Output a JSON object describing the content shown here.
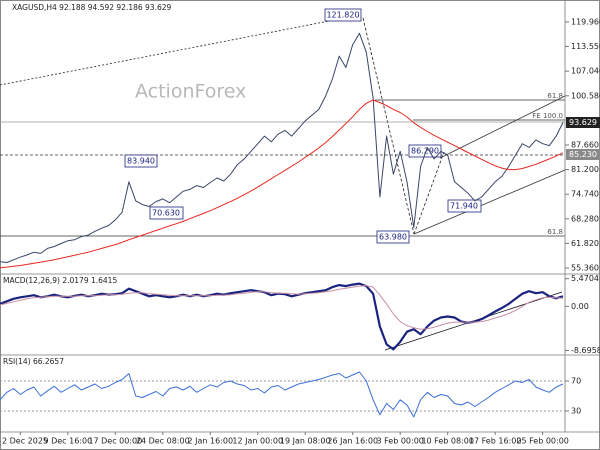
{
  "chart_data": [
    {
      "type": "line",
      "title": "XAGUSD,H4  92.188 94.592 92.186 93.629",
      "categories": [
        null,
        null,
        null,
        "2 Dec 2025",
        null,
        null,
        null,
        null,
        null,
        null,
        "9 Dec 16:00",
        null,
        null,
        null,
        null,
        null,
        null,
        "17 Dec 00:00",
        null,
        null,
        null,
        null,
        null,
        null,
        "24 Dec 08:00",
        null,
        null,
        null,
        null,
        null,
        null,
        "2 Jan 16:00",
        null,
        null,
        null,
        null,
        null,
        null,
        "12 Jan 00:00",
        null,
        null,
        null,
        null,
        null,
        null,
        "19 Jan 08:00",
        null,
        null,
        null,
        null,
        null,
        null,
        "26 Jan 16:00",
        null,
        null,
        null,
        null,
        null,
        null,
        "3 Feb 00:00",
        null,
        null,
        null,
        null,
        null,
        null,
        "10 Feb 08:00",
        null,
        null,
        null,
        null,
        null,
        null,
        "17 Feb 16:00",
        null,
        null,
        null,
        null,
        null,
        null,
        "25 Feb 00:00",
        null,
        null,
        null
      ],
      "series": [
        {
          "color": "#3a4668",
          "values": [
            57.0,
            56.8,
            57.5,
            58.2,
            58.8,
            59.5,
            59.2,
            60.5,
            61.0,
            61.8,
            62.5,
            62.8,
            63.6,
            64.0,
            65.0,
            65.8,
            66.5,
            68.0,
            70.0,
            78.0,
            73.0,
            72.0,
            71.5,
            72.8,
            73.5,
            72.5,
            74.0,
            75.5,
            76.0,
            77.0,
            76.5,
            77.8,
            79.0,
            78.2,
            80.0,
            82.5,
            84.0,
            86.0,
            88.0,
            90.0,
            88.5,
            90.5,
            91.5,
            90.0,
            92.0,
            94.0,
            95.5,
            97.0,
            100.5,
            105.0,
            111.0,
            108.0,
            114.0,
            117.0,
            112.0,
            100.0,
            74.0,
            90.0,
            80.0,
            86.0,
            78.0,
            66.0,
            82.0,
            87.0,
            84.0,
            86.0,
            85.0,
            78.0,
            76.5,
            75.0,
            73.0,
            74.0,
            76.0,
            78.0,
            79.5,
            82.0,
            85.0,
            88.0,
            87.0,
            89.0,
            88.0,
            87.5,
            90.0,
            93.6
          ]
        },
        {
          "color": "#e8281e",
          "values": [
            55.4,
            55.6,
            55.8,
            56.0,
            56.3,
            56.6,
            56.9,
            57.2,
            57.5,
            57.9,
            58.3,
            58.7,
            59.1,
            59.5,
            60.0,
            60.5,
            61.0,
            61.5,
            62.1,
            62.8,
            63.4,
            64.0,
            64.6,
            65.2,
            65.8,
            66.4,
            67.0,
            67.6,
            68.3,
            69.0,
            69.7,
            70.4,
            71.2,
            72.0,
            72.8,
            73.7,
            74.6,
            75.6,
            76.6,
            77.7,
            78.8,
            79.9,
            81.0,
            82.1,
            83.2,
            84.4,
            85.6,
            86.9,
            88.3,
            89.9,
            91.6,
            93.3,
            95.1,
            97.0,
            98.6,
            99.5,
            98.8,
            98.0,
            97.0,
            96.2,
            95.0,
            93.5,
            92.3,
            91.2,
            90.2,
            89.3,
            88.4,
            87.5,
            86.6,
            85.7,
            84.8,
            83.9,
            83.0,
            82.2,
            81.6,
            81.2,
            81.2,
            81.5,
            82.0,
            82.6,
            83.3,
            84.0,
            84.8,
            85.6
          ]
        }
      ],
      "ylim": [
        53.78,
        125.74
      ],
      "yticks": [
        {
          "value": 119.96,
          "label": "119.960"
        },
        {
          "value": 113.55,
          "label": "113.550"
        },
        {
          "value": 107.04,
          "label": "107.040"
        },
        {
          "value": 100.58,
          "label": "100.580"
        },
        {
          "value": 87.66,
          "label": "87.660"
        },
        {
          "value": 81.2,
          "label": "81.200"
        },
        {
          "value": 74.74,
          "label": "74.740"
        },
        {
          "value": 68.28,
          "label": "68.280"
        },
        {
          "value": 61.82,
          "label": "61.820"
        },
        {
          "value": 55.36,
          "label": "55.360"
        }
      ],
      "annotations": [
        "ActionForex",
        "121.820",
        "83.940",
        "70.630",
        "86.290",
        "71.940",
        "63.980",
        "61.8",
        "FE 100.0",
        "61.8",
        "93.629",
        "85.230"
      ],
      "grid": false
    },
    {
      "type": "line",
      "title": "MACD(12,26,9) 2.0179 1.6415",
      "series": [
        {
          "color": "#1a237e",
          "values": [
            0.5,
            1.0,
            1.5,
            1.8,
            2.0,
            2.2,
            1.8,
            2.0,
            2.3,
            2.0,
            1.8,
            2.1,
            2.3,
            2.0,
            2.2,
            2.5,
            2.3,
            2.4,
            2.6,
            3.5,
            3.0,
            2.5,
            2.0,
            2.2,
            2.0,
            1.8,
            2.0,
            2.3,
            2.0,
            2.3,
            2.0,
            2.2,
            2.5,
            2.3,
            2.6,
            2.8,
            3.0,
            3.2,
            3.0,
            2.8,
            2.2,
            2.5,
            2.4,
            2.0,
            2.3,
            2.6,
            2.8,
            3.0,
            3.2,
            3.8,
            4.2,
            4.0,
            4.3,
            4.5,
            4.0,
            2.5,
            -4.0,
            -7.5,
            -8.5,
            -7.0,
            -5.0,
            -4.5,
            -5.5,
            -4.0,
            -2.8,
            -2.2,
            -2.0,
            -2.2,
            -3.0,
            -3.2,
            -3.0,
            -2.5,
            -1.8,
            -1.0,
            -0.3,
            0.5,
            1.5,
            2.5,
            3.0,
            2.6,
            2.8,
            2.0,
            1.6,
            2.0
          ]
        },
        {
          "color": "#c98fa3",
          "values": [
            0.3,
            0.6,
            0.9,
            1.2,
            1.5,
            1.7,
            1.8,
            1.9,
            2.0,
            2.0,
            2.0,
            2.0,
            2.1,
            2.1,
            2.1,
            2.2,
            2.3,
            2.3,
            2.4,
            2.6,
            2.7,
            2.7,
            2.5,
            2.4,
            2.3,
            2.2,
            2.1,
            2.1,
            2.1,
            2.1,
            2.1,
            2.1,
            2.2,
            2.2,
            2.3,
            2.5,
            2.6,
            2.8,
            2.9,
            2.9,
            2.7,
            2.6,
            2.6,
            2.5,
            2.4,
            2.5,
            2.6,
            2.7,
            2.9,
            3.1,
            3.4,
            3.6,
            3.8,
            4.0,
            4.1,
            3.8,
            2.2,
            0.5,
            -1.5,
            -3.0,
            -3.8,
            -4.2,
            -4.5,
            -4.4,
            -4.1,
            -3.7,
            -3.3,
            -3.1,
            -3.1,
            -3.1,
            -3.1,
            -3.0,
            -2.7,
            -2.3,
            -1.9,
            -1.4,
            -0.8,
            0.0,
            0.8,
            1.3,
            1.7,
            1.8,
            1.7,
            1.6
          ]
        }
      ],
      "ylim": [
        -9.4,
        6.0
      ],
      "yticks": [
        5.4704,
        {
          "value": 0,
          "label": "0.00"
        },
        -8.6958
      ],
      "grid": false
    },
    {
      "type": "line",
      "title": "RSI(14) 66.2657",
      "series": [
        {
          "color": "#3b6fd4",
          "values": [
            45,
            55,
            60,
            52,
            58,
            62,
            50,
            57,
            63,
            55,
            60,
            65,
            58,
            62,
            66,
            60,
            63,
            68,
            72,
            80,
            50,
            48,
            52,
            56,
            50,
            60,
            62,
            58,
            63,
            55,
            60,
            65,
            62,
            68,
            70,
            66,
            64,
            58,
            60,
            54,
            62,
            64,
            58,
            62,
            66,
            68,
            70,
            72,
            75,
            78,
            80,
            74,
            78,
            82,
            70,
            45,
            25,
            40,
            32,
            45,
            38,
            22,
            45,
            55,
            48,
            52,
            50,
            40,
            38,
            42,
            36,
            42,
            48,
            55,
            60,
            65,
            70,
            68,
            72,
            62,
            58,
            55,
            62,
            66
          ]
        }
      ],
      "ylim": [
        2,
        98
      ],
      "yticks": [
        70,
        30
      ],
      "grid": true
    }
  ]
}
